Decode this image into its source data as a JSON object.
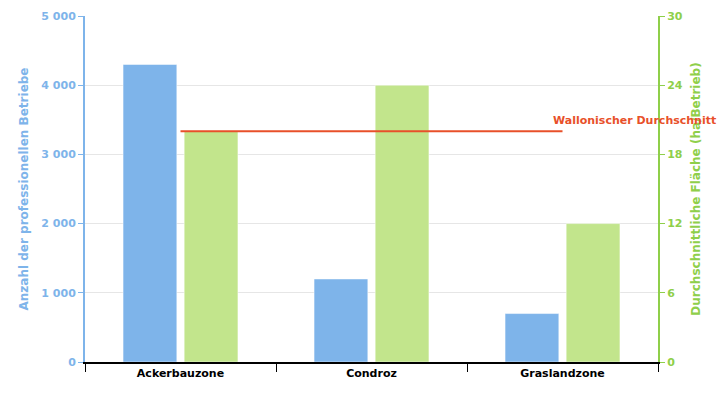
{
  "chart_data": {
    "type": "bar",
    "categories": [
      "Ackerbauzone",
      "Condroz",
      "Graslandzone"
    ],
    "series": [
      {
        "color": "#7eb4ea",
        "values": [
          4300,
          1200,
          700
        ]
      },
      {
        "color": "#c2e58c",
        "values": [
          20,
          24,
          12
        ],
        "axis": "y2"
      }
    ],
    "ylabel": "Anzahl der professionellen Betriebe",
    "y2label": "Durchschnittliche Fläche (ha/Betrieb)",
    "ylim": [
      0,
      5000
    ],
    "yticks": [
      0,
      {
        "value": 1000,
        "label": "1 000"
      },
      {
        "value": 2000,
        "label": "2 000"
      },
      {
        "value": 3000,
        "label": "3 000"
      },
      {
        "value": 4000,
        "label": "4 000"
      },
      {
        "value": 5000,
        "label": "5 000"
      }
    ],
    "y2lim": [
      0,
      30
    ],
    "y2ticks": [
      0,
      6,
      12,
      18,
      24,
      30
    ],
    "grid": true,
    "annotations": [
      {
        "text": "Wallonischer Durchschnitt",
        "y": 20,
        "axis": "y2",
        "x": [
          "Ackerbauzone",
          "Graslandzone"
        ],
        "color": "#e8502a"
      }
    ]
  }
}
